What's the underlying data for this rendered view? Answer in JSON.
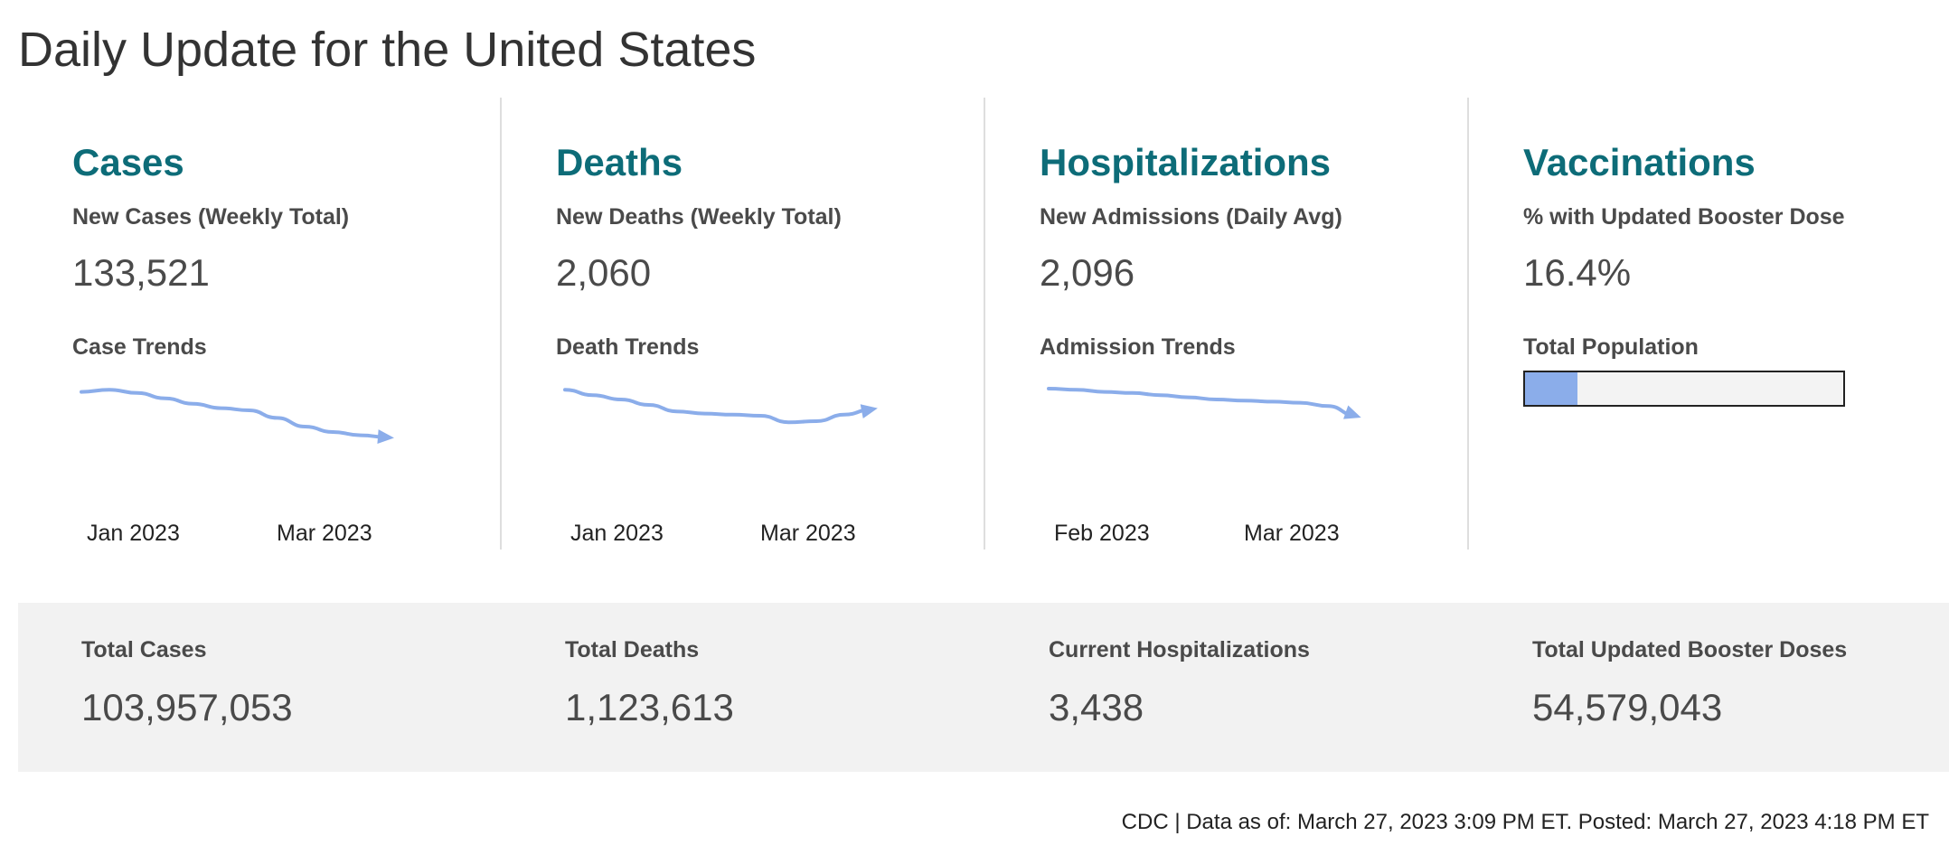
{
  "page": {
    "title": "Daily Update for the United States"
  },
  "panels": [
    {
      "heading": "Cases",
      "metric_label": "New Cases (Weekly Total)",
      "metric_value": "133,521",
      "trend_label": "Case Trends",
      "axis": [
        "Jan 2023",
        "Mar 2023"
      ],
      "trend_values": [
        0.77,
        0.79,
        0.76,
        0.71,
        0.66,
        0.62,
        0.6,
        0.53,
        0.45,
        0.4,
        0.37,
        0.35
      ],
      "trend_direction": "down"
    },
    {
      "heading": "Deaths",
      "metric_label": "New Deaths (Weekly Total)",
      "metric_value": "2,060",
      "trend_label": "Death Trends",
      "axis": [
        "Jan 2023",
        "Mar 2023"
      ],
      "trend_values": [
        0.79,
        0.74,
        0.7,
        0.65,
        0.59,
        0.57,
        0.56,
        0.55,
        0.49,
        0.5,
        0.56,
        0.61
      ],
      "trend_direction": "up"
    },
    {
      "heading": "Hospitalizations",
      "metric_label": "New Admissions (Daily Avg)",
      "metric_value": "2,096",
      "trend_label": "Admission Trends",
      "axis": [
        "Feb 2023",
        "Mar 2023"
      ],
      "trend_values": [
        0.8,
        0.79,
        0.77,
        0.76,
        0.74,
        0.72,
        0.7,
        0.69,
        0.68,
        0.67,
        0.64,
        0.55
      ],
      "trend_direction": "down"
    },
    {
      "heading": "Vaccinations",
      "metric_label": "% with Updated Booster Dose",
      "metric_value": "16.4%",
      "trend_label": "Total Population",
      "progress_fraction": 0.164
    }
  ],
  "totals": [
    {
      "label": "Total Cases",
      "value": "103,957,053"
    },
    {
      "label": "Total Deaths",
      "value": "1,123,613"
    },
    {
      "label": "Current Hospitalizations",
      "value": "3,438"
    },
    {
      "label": "Total Updated Booster Doses",
      "value": "54,579,043"
    }
  ],
  "footer": {
    "note": "CDC | Data as of: March 27, 2023 3:09 PM ET. Posted: March 27, 2023 4:18 PM ET"
  },
  "colors": {
    "heading": "#0d6c78",
    "trend_line": "#8badea",
    "divider": "#dedede",
    "band": "#f2f2f2"
  }
}
